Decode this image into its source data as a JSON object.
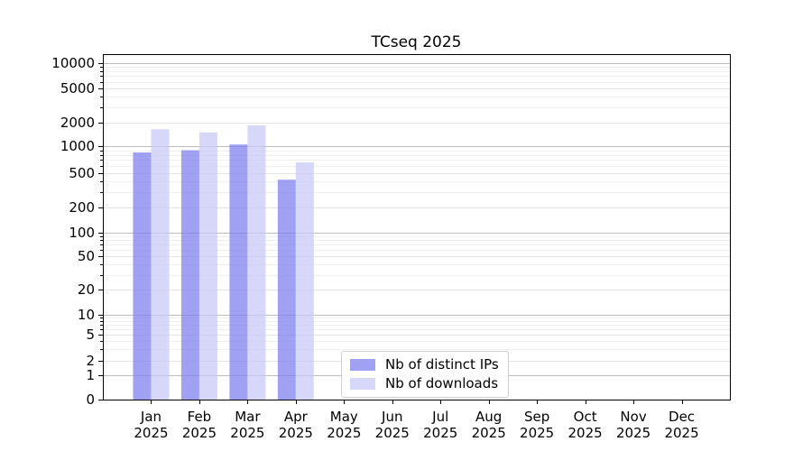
{
  "chart_data": {
    "type": "bar",
    "title": "TCseq 2025",
    "x_categories": [
      "Jan",
      "Feb",
      "Mar",
      "Apr",
      "May",
      "Jun",
      "Jul",
      "Aug",
      "Sep",
      "Oct",
      "Nov",
      "Dec"
    ],
    "x_sublabel": "2025",
    "y_scale": "symlog",
    "y_ticks": [
      0,
      1,
      2,
      5,
      10,
      20,
      50,
      100,
      200,
      500,
      1000,
      2000,
      5000,
      10000
    ],
    "ylim": [
      0,
      13000
    ],
    "grid": true,
    "bar_alpha": 0.72,
    "series": [
      {
        "name": "Nb of distinct IPs",
        "color": "#7d7df0",
        "values": [
          850,
          900,
          1050,
          420,
          null,
          null,
          null,
          null,
          null,
          null,
          null,
          null
        ]
      },
      {
        "name": "Nb of downloads",
        "color": "#c8c8f7",
        "values": [
          1650,
          1500,
          1850,
          660,
          null,
          null,
          null,
          null,
          null,
          null,
          null,
          null
        ]
      }
    ],
    "legend": {
      "position": "lower-center-inside"
    },
    "colors": {
      "major_gridline": "#bdbdbd",
      "labeled_gridline": "#e4e4e4",
      "minor_gridline": "#efefef",
      "spine": "#000000",
      "text": "#000000"
    }
  }
}
